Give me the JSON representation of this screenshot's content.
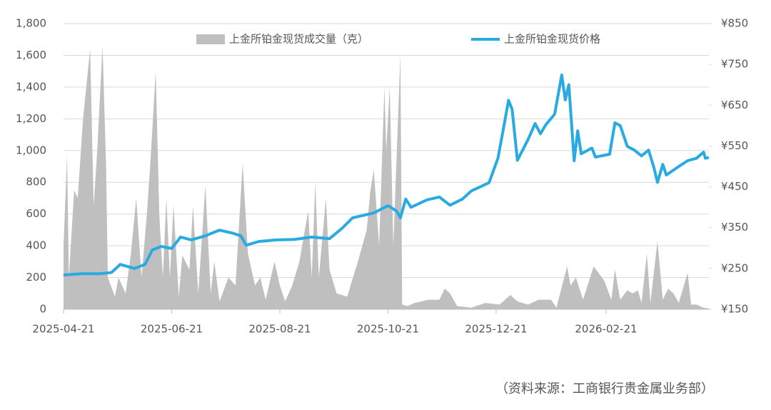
{
  "chart_data": {
    "type": "combo",
    "source": "（资料来源：工商银行贵金属业务部）",
    "xlim": [
      "2025-04-21",
      "2026-04-20"
    ],
    "xticks": [
      "2025-04-21",
      "2025-06-21",
      "2025-08-21",
      "2025-10-21",
      "2025-12-21",
      "2026-02-21"
    ],
    "ylim": [
      0,
      1800
    ],
    "yticks": [
      0,
      200,
      400,
      600,
      800,
      {
        "value": 1000,
        "label": "1,000"
      },
      {
        "value": 1200,
        "label": "1,200"
      },
      {
        "value": 1400,
        "label": "1,400"
      },
      {
        "value": 1600,
        "label": "1,600"
      },
      {
        "value": 1800,
        "label": "1,800"
      }
    ],
    "y2lim": [
      150,
      850
    ],
    "y2ticks": [
      {
        "value": 150,
        "label": "¥150"
      },
      {
        "value": 250,
        "label": "¥250"
      },
      {
        "value": 350,
        "label": "¥350"
      },
      {
        "value": 450,
        "label": "¥450"
      },
      {
        "value": 550,
        "label": "¥550"
      },
      {
        "value": 650,
        "label": "¥650"
      },
      {
        "value": 750,
        "label": "¥750"
      },
      {
        "value": 850,
        "label": "¥850"
      }
    ],
    "grid": true,
    "legend": "top",
    "series": [
      {
        "name": "上金所铂金现货成交量（克）",
        "type": "area",
        "color": "#bfbfbf",
        "x": [
          "2025-04-21",
          "2025-04-23",
          "2025-04-24",
          "2025-04-27",
          "2025-04-29",
          "2025-05-02",
          "2025-05-06",
          "2025-05-08",
          "2025-05-10",
          "2025-05-13",
          "2025-05-15",
          "2025-05-16",
          "2025-05-20",
          "2025-05-22",
          "2025-05-26",
          "2025-05-29",
          "2025-06-01",
          "2025-06-04",
          "2025-06-07",
          "2025-06-09",
          "2025-06-12",
          "2025-06-14",
          "2025-06-16",
          "2025-06-18",
          "2025-06-20",
          "2025-06-22",
          "2025-06-25",
          "2025-06-27",
          "2025-07-01",
          "2025-07-03",
          "2025-07-06",
          "2025-07-10",
          "2025-07-13",
          "2025-07-15",
          "2025-07-18",
          "2025-07-23",
          "2025-07-27",
          "2025-07-31",
          "2025-08-03",
          "2025-08-07",
          "2025-08-10",
          "2025-08-13",
          "2025-08-18",
          "2025-08-21",
          "2025-08-24",
          "2025-08-28",
          "2025-09-01",
          "2025-09-06",
          "2025-09-08",
          "2025-09-10",
          "2025-09-12",
          "2025-09-16",
          "2025-09-18",
          "2025-09-22",
          "2025-09-28",
          "2025-10-04",
          "2025-10-09",
          "2025-10-11",
          "2025-10-13",
          "2025-10-16",
          "2025-10-19",
          "2025-10-20",
          "2025-10-22",
          "2025-10-24",
          "2025-10-28",
          "2025-10-29",
          "2025-11-01",
          "2025-11-05",
          "2025-11-13",
          "2025-11-19",
          "2025-11-22",
          "2025-11-25",
          "2025-11-29",
          "2025-12-07",
          "2025-12-15",
          "2025-12-23",
          "2025-12-29",
          "2026-01-02",
          "2026-01-08",
          "2026-01-14",
          "2026-01-21",
          "2026-01-24",
          "2026-01-30",
          "2026-02-01",
          "2026-02-04",
          "2026-02-08",
          "2026-02-12",
          "2026-02-14",
          "2026-02-20",
          "2026-02-24",
          "2026-02-26",
          "2026-03-01",
          "2026-03-05",
          "2026-03-08",
          "2026-03-11",
          "2026-03-13",
          "2026-03-16",
          "2026-03-18",
          "2026-03-22",
          "2026-03-25",
          "2026-03-28",
          "2026-03-31",
          "2026-04-03",
          "2026-04-08",
          "2026-04-10",
          "2026-04-13",
          "2026-04-17",
          "2026-04-20"
        ],
        "values": [
          400,
          970,
          200,
          750,
          700,
          1200,
          1640,
          650,
          1000,
          1660,
          900,
          200,
          80,
          200,
          100,
          350,
          700,
          200,
          600,
          930,
          1500,
          600,
          200,
          700,
          200,
          660,
          80,
          340,
          250,
          650,
          100,
          780,
          100,
          300,
          50,
          200,
          150,
          920,
          350,
          150,
          200,
          60,
          300,
          150,
          50,
          150,
          300,
          620,
          200,
          800,
          200,
          700,
          250,
          100,
          80,
          300,
          500,
          740,
          880,
          400,
          1400,
          1000,
          1400,
          400,
          1600,
          30,
          20,
          40,
          60,
          60,
          130,
          100,
          20,
          10,
          40,
          30,
          90,
          50,
          30,
          60,
          60,
          10,
          270,
          150,
          200,
          60,
          200,
          270,
          180,
          60,
          250,
          60,
          120,
          100,
          120,
          40,
          350,
          40,
          430,
          60,
          130,
          100,
          40,
          230,
          30,
          30,
          10,
          5
        ]
      },
      {
        "name": "上金所铂金现货价格",
        "type": "line",
        "axis": "y2",
        "color": "#29aae1",
        "x": [
          "2025-04-21",
          "2025-05-01",
          "2025-05-11",
          "2025-05-18",
          "2025-05-23",
          "2025-05-31",
          "2025-06-06",
          "2025-06-10",
          "2025-06-15",
          "2025-06-21",
          "2025-06-26",
          "2025-07-02",
          "2025-07-10",
          "2025-07-18",
          "2025-07-25",
          "2025-07-30",
          "2025-08-02",
          "2025-08-09",
          "2025-08-19",
          "2025-08-29",
          "2025-09-08",
          "2025-09-18",
          "2025-09-25",
          "2025-10-01",
          "2025-10-13",
          "2025-10-21",
          "2025-10-26",
          "2025-10-28",
          "2025-10-31",
          "2025-11-03",
          "2025-11-12",
          "2025-11-19",
          "2025-11-25",
          "2025-12-02",
          "2025-12-07",
          "2025-12-17",
          "2025-12-22",
          "2025-12-25",
          "2025-12-28",
          "2025-12-30",
          "2026-01-02",
          "2026-01-08",
          "2026-01-12",
          "2026-01-15",
          "2026-01-18",
          "2026-01-23",
          "2026-01-27",
          "2026-01-29",
          "2026-01-31",
          "2026-02-03",
          "2026-02-05",
          "2026-02-07",
          "2026-02-13",
          "2026-02-15",
          "2026-02-23",
          "2026-02-26",
          "2026-03-01",
          "2026-03-05",
          "2026-03-09",
          "2026-03-13",
          "2026-03-17",
          "2026-03-20",
          "2026-03-22",
          "2026-03-25",
          "2026-03-27",
          "2026-04-02",
          "2026-04-08",
          "2026-04-13",
          "2026-04-17",
          "2026-04-18",
          "2026-04-20"
        ],
        "values": [
          234,
          237,
          237,
          240,
          260,
          250,
          260,
          295,
          304,
          299,
          327,
          320,
          330,
          344,
          337,
          330,
          307,
          316,
          320,
          321,
          327,
          323,
          348,
          374,
          386,
          404,
          390,
          374,
          420,
          400,
          418,
          425,
          405,
          420,
          440,
          460,
          520,
          590,
          662,
          640,
          515,
          566,
          605,
          580,
          602,
          628,
          724,
          663,
          700,
          514,
          587,
          531,
          545,
          523,
          530,
          607,
          600,
          549,
          540,
          526,
          540,
          497,
          461,
          505,
          479,
          497,
          514,
          520,
          535,
          520,
          522
        ]
      }
    ]
  }
}
